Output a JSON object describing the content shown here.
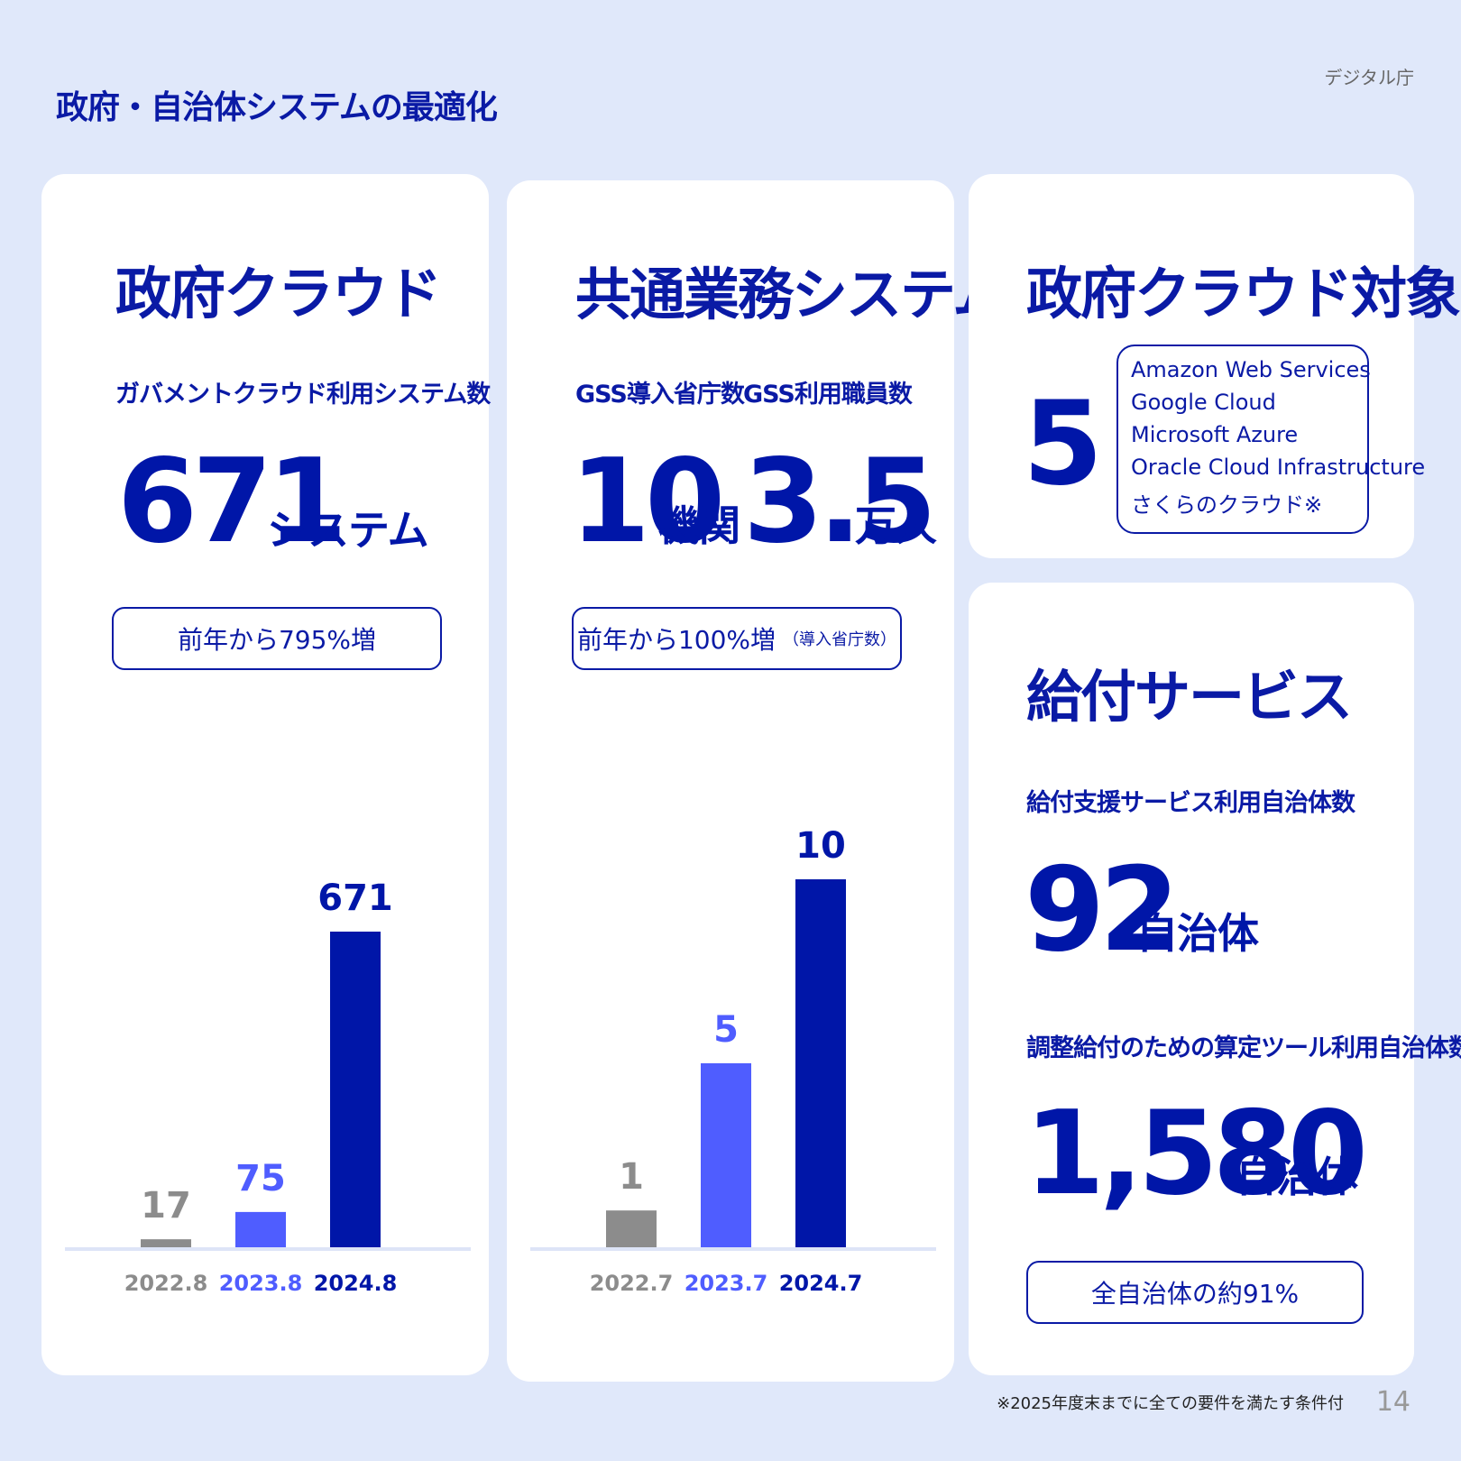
{
  "header": {
    "title": "政府・自治体システムの最適化",
    "org": "デジタル庁"
  },
  "gov_cloud": {
    "title": "政府クラウド",
    "subtitle": "ガバメントクラウド利用システム数",
    "value": "671",
    "unit": "システム",
    "growth": "前年から795%増"
  },
  "common_systems": {
    "title": "共通業務システム",
    "metric1_label": "GSS導入省庁数",
    "metric1_value": "10",
    "metric1_unit": "機関",
    "metric2_label": "GSS利用職員数",
    "metric2_value": "3.5",
    "metric2_unit": "万人",
    "growth": "前年から100%増",
    "growth_note": "（導入省庁数）"
  },
  "cloud_targets": {
    "title": "政府クラウド対象",
    "count": "5",
    "vendors": [
      "Amazon Web Services",
      "Google Cloud",
      "Microsoft Azure",
      "Oracle Cloud Infrastructure",
      "さくらのクラウド※"
    ]
  },
  "benefit_services": {
    "title": "給付サービス",
    "metric1_label": "給付支援サービス利用自治体数",
    "metric1_value": "92",
    "metric1_unit": "自治体",
    "metric2_label": "調整給付のための算定ツール利用自治体数",
    "metric2_value": "1,580",
    "metric2_unit": "自治体",
    "note": "全自治体の約91%"
  },
  "chart_data": [
    {
      "type": "bar",
      "categories": [
        "2022.8",
        "2023.8",
        "2024.8"
      ],
      "values": [
        17,
        75,
        671
      ],
      "colors": [
        "#8c8c8c",
        "#4f5dff",
        "#0016a8"
      ]
    },
    {
      "type": "bar",
      "categories": [
        "2022.7",
        "2023.7",
        "2024.7"
      ],
      "values": [
        1,
        5,
        10
      ],
      "colors": [
        "#8c8c8c",
        "#4f5dff",
        "#0016a8"
      ]
    }
  ],
  "footer": {
    "footnote": "※2025年度末までに全ての要件を満たす条件付",
    "page": "14"
  }
}
